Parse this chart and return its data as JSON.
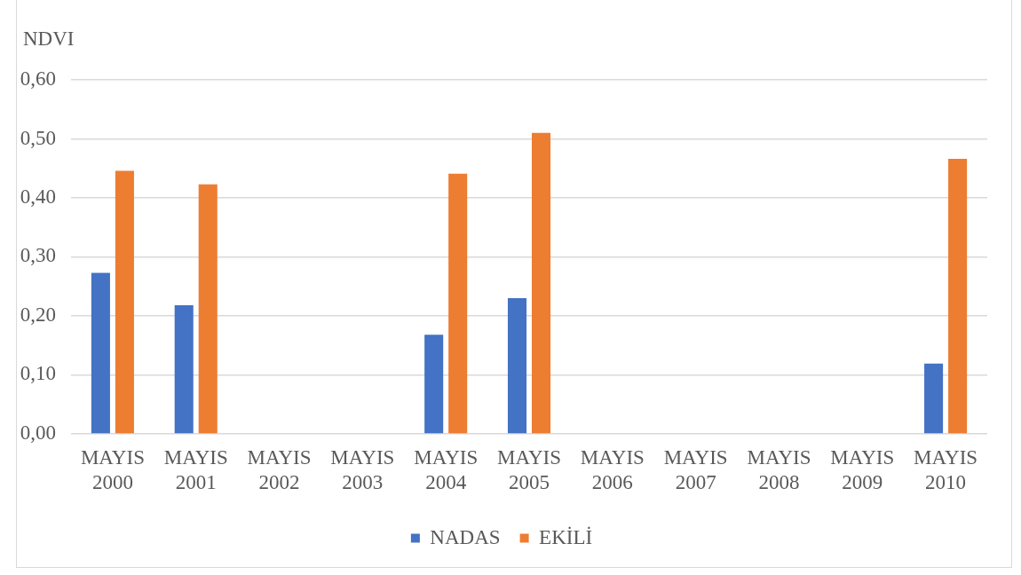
{
  "chart_data": {
    "type": "bar",
    "ylabel": "NDVI",
    "categories": [
      "MAYIS 2000",
      "MAYIS 2001",
      "MAYIS 2002",
      "MAYIS 2003",
      "MAYIS 2004",
      "MAYIS 2005",
      "MAYIS 2006",
      "MAYIS 2007",
      "MAYIS 2008",
      "MAYIS 2009",
      "MAYIS 2010"
    ],
    "series": [
      {
        "name": "NADAS",
        "color": "#4472c4",
        "values": [
          0.273,
          0.218,
          null,
          null,
          0.168,
          0.23,
          null,
          null,
          null,
          null,
          0.119
        ]
      },
      {
        "name": "EKİLİ",
        "color": "#ed7d31",
        "values": [
          0.446,
          0.423,
          null,
          null,
          0.441,
          0.51,
          null,
          null,
          null,
          null,
          0.466
        ]
      }
    ],
    "ylim": [
      0,
      0.6
    ],
    "yticks": [
      {
        "value": 0,
        "label": "0,00"
      },
      {
        "value": 0.1,
        "label": "0,10"
      },
      {
        "value": 0.2,
        "label": "0,20"
      },
      {
        "value": 0.3,
        "label": "0,30"
      },
      {
        "value": 0.4,
        "label": "0,40"
      },
      {
        "value": 0.5,
        "label": "0,50"
      },
      {
        "value": 0.6,
        "label": "0,60"
      }
    ],
    "grid": "y",
    "legend": "bottom"
  }
}
